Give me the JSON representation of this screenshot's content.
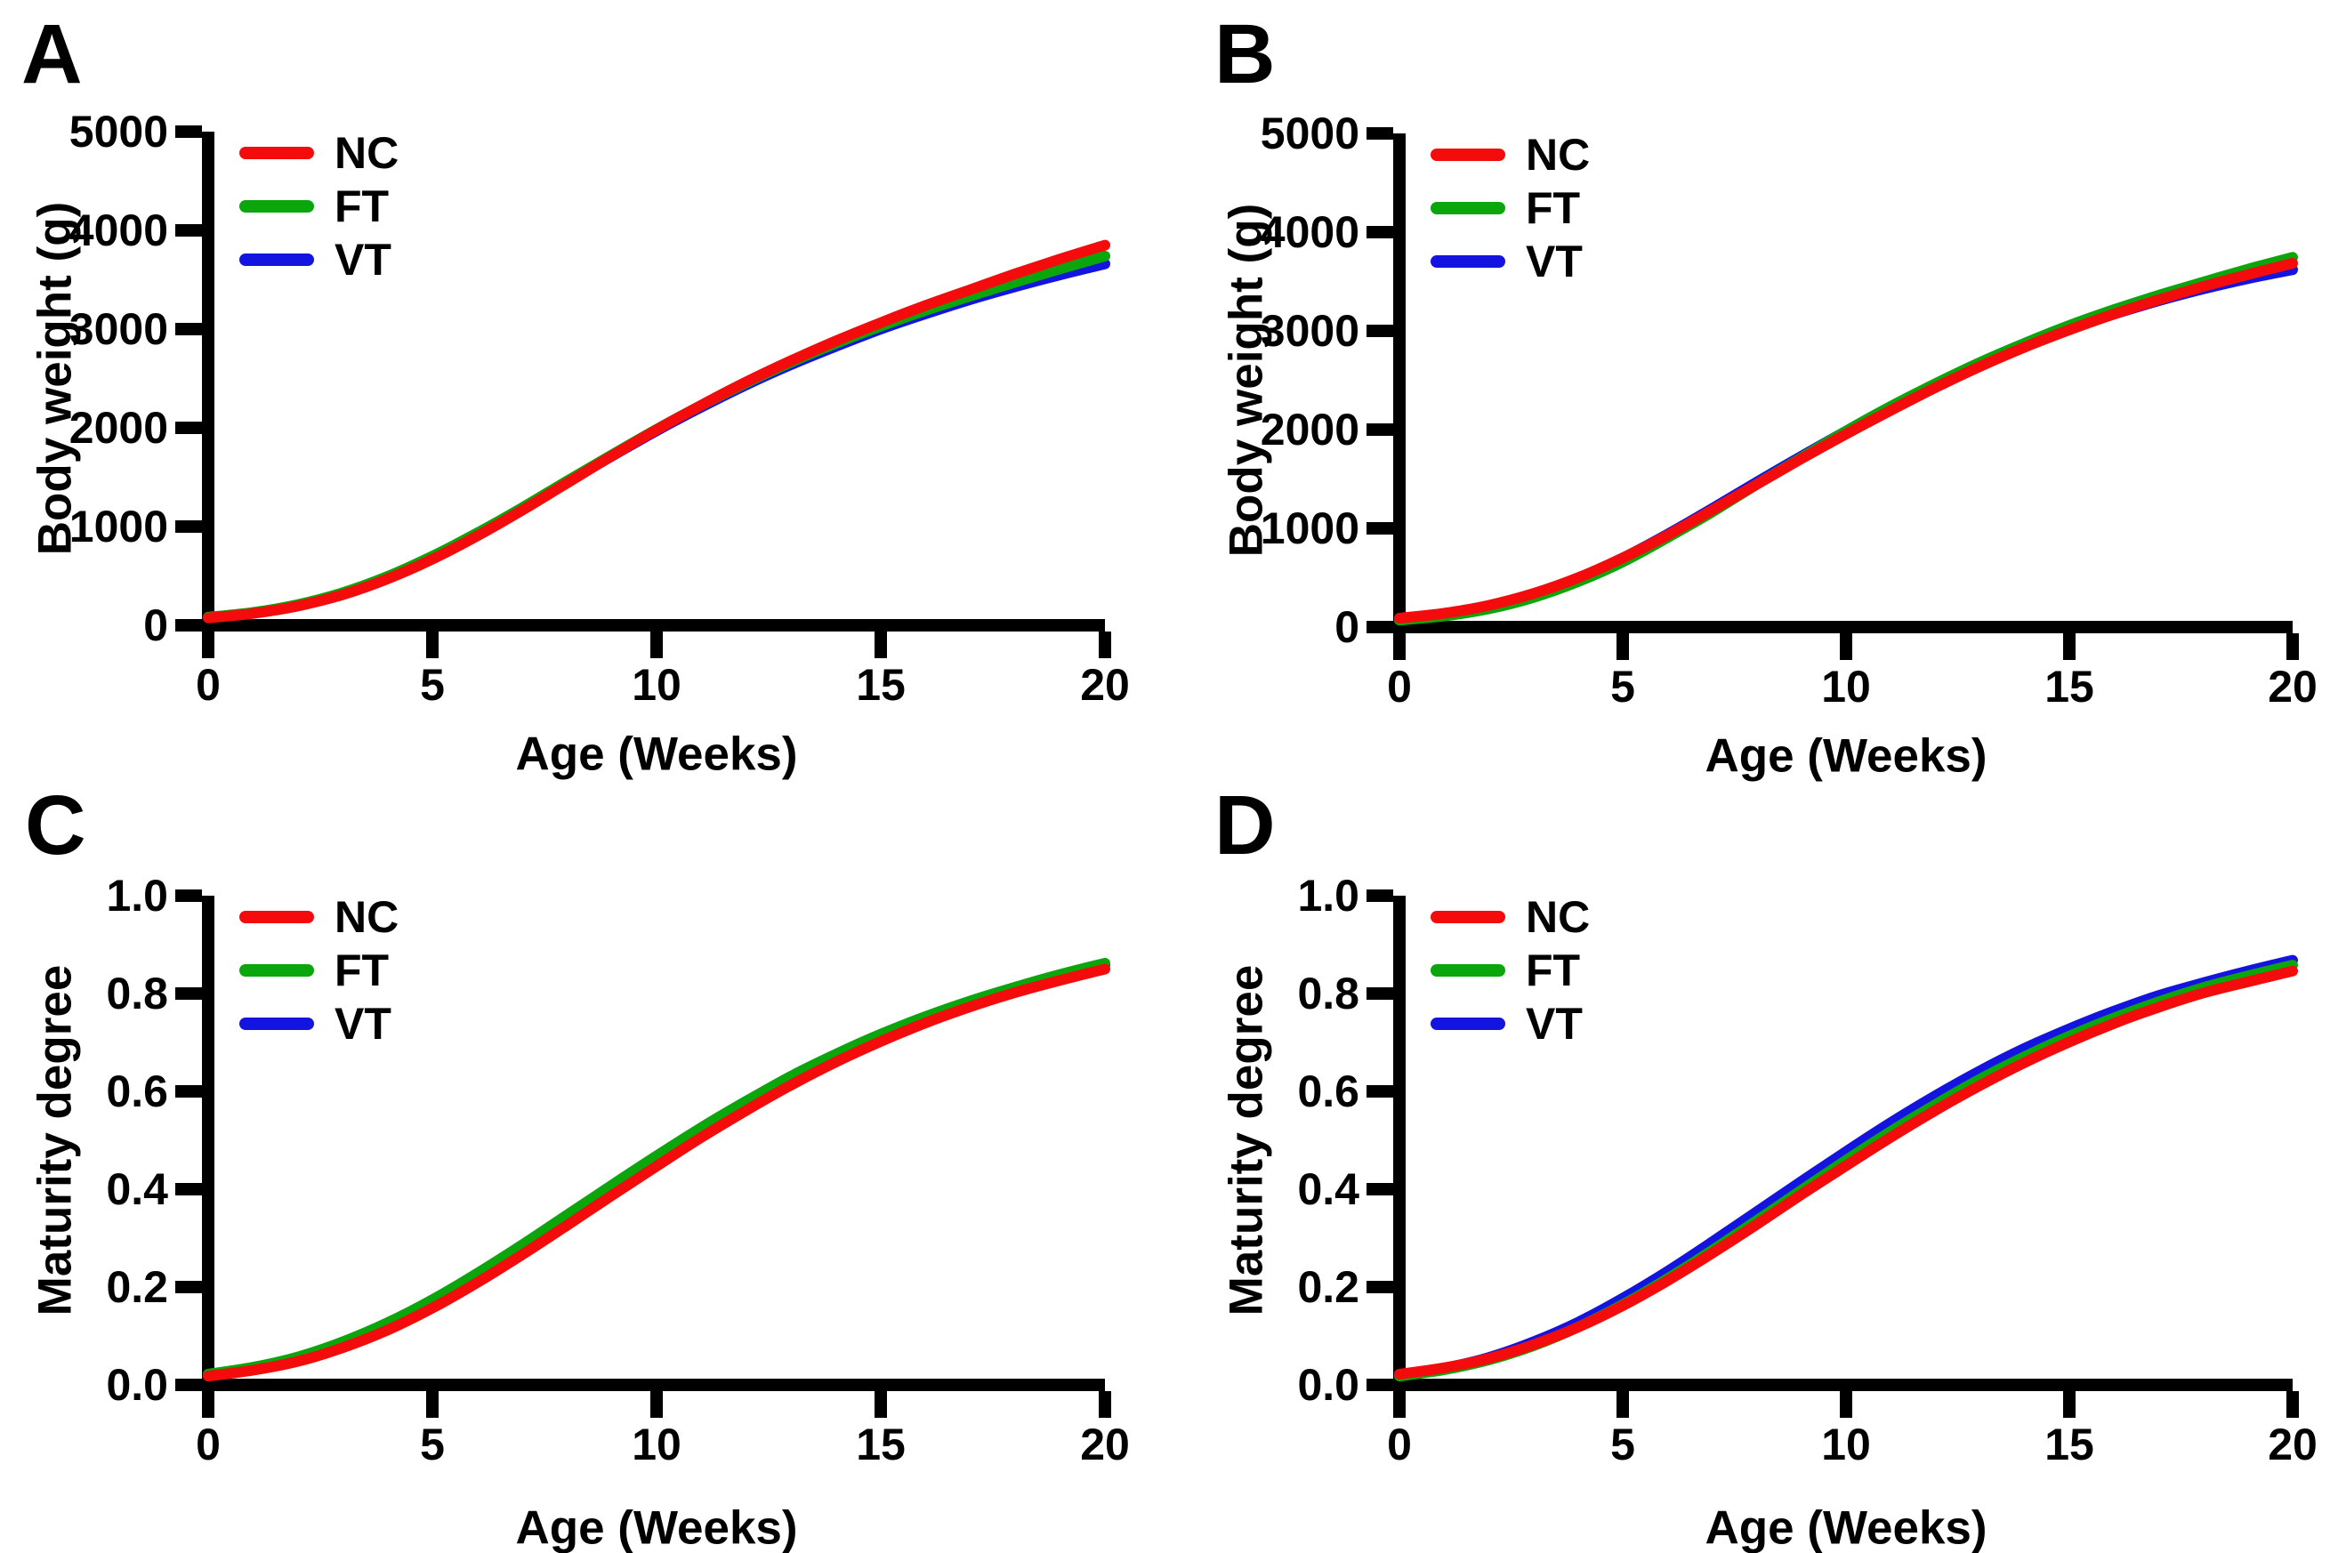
{
  "figure": {
    "background": "#ffffff",
    "axis_color": "#000000",
    "series_colors": {
      "NC": "#f40c0c",
      "FT": "#0ba60b",
      "VT": "#1414e0"
    }
  },
  "chart_data": [
    {
      "panel": "A",
      "type": "line",
      "title": "",
      "xlabel": "Age (Weeks)",
      "ylabel": "Body weight (g)",
      "xlim": [
        0,
        20
      ],
      "ylim": [
        0,
        5000
      ],
      "xticks": [
        0,
        5,
        10,
        15,
        20
      ],
      "xtick_labels": [
        "0",
        "5",
        "10",
        "15",
        "20"
      ],
      "yticks": [
        0,
        1000,
        2000,
        3000,
        4000,
        5000
      ],
      "ytick_labels": [
        "0",
        "1000",
        "2000",
        "3000",
        "4000",
        "5000"
      ],
      "grid": false,
      "legend_position": "top-left",
      "x": [
        0,
        1,
        2,
        3,
        4,
        5,
        6,
        7,
        8,
        9,
        10,
        11,
        12,
        13,
        14,
        15,
        16,
        17,
        18,
        19,
        20
      ],
      "series": [
        {
          "name": "NC",
          "color": "#f40c0c",
          "values": [
            75,
            120,
            195,
            310,
            470,
            670,
            905,
            1165,
            1440,
            1715,
            1980,
            2230,
            2465,
            2680,
            2880,
            3065,
            3240,
            3400,
            3560,
            3710,
            3850
          ]
        },
        {
          "name": "FT",
          "color": "#0ba60b",
          "values": [
            82,
            130,
            210,
            330,
            495,
            700,
            935,
            1190,
            1460,
            1725,
            1985,
            2228,
            2455,
            2665,
            2855,
            3030,
            3190,
            3335,
            3475,
            3610,
            3740
          ]
        },
        {
          "name": "VT",
          "color": "#1414e0",
          "values": [
            78,
            126,
            204,
            322,
            485,
            688,
            922,
            1178,
            1448,
            1713,
            1970,
            2210,
            2435,
            2640,
            2825,
            3000,
            3155,
            3300,
            3430,
            3550,
            3660
          ]
        }
      ]
    },
    {
      "panel": "B",
      "type": "line",
      "title": "",
      "xlabel": "Age (Weeks)",
      "ylabel": "Body weight (g)",
      "xlim": [
        0,
        20
      ],
      "ylim": [
        0,
        5000
      ],
      "xticks": [
        0,
        5,
        10,
        15,
        20
      ],
      "xtick_labels": [
        "0",
        "5",
        "10",
        "15",
        "20"
      ],
      "yticks": [
        0,
        1000,
        2000,
        3000,
        4000,
        5000
      ],
      "ytick_labels": [
        "0",
        "1000",
        "2000",
        "3000",
        "4000",
        "5000"
      ],
      "grid": false,
      "legend_position": "top-left",
      "x": [
        0,
        1,
        2,
        3,
        4,
        5,
        6,
        7,
        8,
        9,
        10,
        11,
        12,
        13,
        14,
        15,
        16,
        17,
        18,
        19,
        20
      ],
      "series": [
        {
          "name": "NC",
          "color": "#f40c0c",
          "values": [
            90,
            140,
            220,
            340,
            500,
            700,
            930,
            1185,
            1445,
            1705,
            1955,
            2195,
            2425,
            2640,
            2835,
            3010,
            3170,
            3315,
            3450,
            3570,
            3685
          ]
        },
        {
          "name": "FT",
          "color": "#0ba60b",
          "values": [
            70,
            112,
            185,
            300,
            460,
            660,
            905,
            1165,
            1445,
            1715,
            1985,
            2235,
            2465,
            2680,
            2875,
            3055,
            3215,
            3360,
            3495,
            3625,
            3745
          ]
        },
        {
          "name": "VT",
          "color": "#1414e0",
          "values": [
            80,
            128,
            208,
            330,
            495,
            700,
            940,
            1200,
            1468,
            1730,
            1985,
            2230,
            2455,
            2665,
            2850,
            3020,
            3170,
            3305,
            3425,
            3530,
            3620
          ]
        }
      ]
    },
    {
      "panel": "C",
      "type": "line",
      "title": "",
      "xlabel": "Age (Weeks)",
      "ylabel": "Maturity degree",
      "xlim": [
        0,
        20
      ],
      "ylim": [
        0,
        1
      ],
      "xticks": [
        0,
        5,
        10,
        15,
        20
      ],
      "xtick_labels": [
        "0",
        "5",
        "10",
        "15",
        "20"
      ],
      "yticks": [
        0,
        0.2,
        0.4,
        0.6,
        0.8,
        1.0
      ],
      "ytick_labels": [
        "0.0",
        "0.2",
        "0.4",
        "0.6",
        "0.8",
        "1.0"
      ],
      "grid": false,
      "legend_position": "top-left",
      "x": [
        0,
        1,
        2,
        3,
        4,
        5,
        6,
        7,
        8,
        9,
        10,
        11,
        12,
        13,
        14,
        15,
        16,
        17,
        18,
        19,
        20
      ],
      "series": [
        {
          "name": "NC",
          "color": "#f40c0c",
          "values": [
            0.018,
            0.03,
            0.048,
            0.076,
            0.112,
            0.157,
            0.209,
            0.266,
            0.326,
            0.387,
            0.447,
            0.506,
            0.561,
            0.613,
            0.66,
            0.702,
            0.74,
            0.773,
            0.802,
            0.827,
            0.85
          ]
        },
        {
          "name": "FT",
          "color": "#0ba60b",
          "values": [
            0.022,
            0.036,
            0.057,
            0.088,
            0.127,
            0.174,
            0.228,
            0.286,
            0.347,
            0.408,
            0.468,
            0.526,
            0.58,
            0.631,
            0.676,
            0.717,
            0.753,
            0.785,
            0.813,
            0.839,
            0.862
          ]
        },
        {
          "name": "VT",
          "color": "#1414e0",
          "values": [
            0.02,
            0.034,
            0.054,
            0.084,
            0.122,
            0.168,
            0.221,
            0.279,
            0.339,
            0.4,
            0.46,
            0.518,
            0.573,
            0.624,
            0.67,
            0.711,
            0.748,
            0.78,
            0.809,
            0.835,
            0.858
          ]
        }
      ]
    },
    {
      "panel": "D",
      "type": "line",
      "title": "",
      "xlabel": "Age (Weeks)",
      "ylabel": "Maturity degree",
      "xlim": [
        0,
        20
      ],
      "ylim": [
        0,
        1
      ],
      "xticks": [
        0,
        5,
        10,
        15,
        20
      ],
      "xtick_labels": [
        "0",
        "5",
        "10",
        "15",
        "20"
      ],
      "yticks": [
        0,
        0.2,
        0.4,
        0.6,
        0.8,
        1.0
      ],
      "ytick_labels": [
        "0.0",
        "0.2",
        "0.4",
        "0.6",
        "0.8",
        "1.0"
      ],
      "grid": false,
      "legend_position": "top-left",
      "x": [
        0,
        1,
        2,
        3,
        4,
        5,
        6,
        7,
        8,
        9,
        10,
        11,
        12,
        13,
        14,
        15,
        16,
        17,
        18,
        19,
        20
      ],
      "series": [
        {
          "name": "NC",
          "color": "#f40c0c",
          "values": [
            0.022,
            0.035,
            0.054,
            0.082,
            0.118,
            0.162,
            0.213,
            0.269,
            0.328,
            0.389,
            0.448,
            0.506,
            0.561,
            0.612,
            0.659,
            0.701,
            0.739,
            0.772,
            0.801,
            0.824,
            0.846
          ]
        },
        {
          "name": "FT",
          "color": "#0ba60b",
          "values": [
            0.018,
            0.031,
            0.051,
            0.08,
            0.118,
            0.164,
            0.217,
            0.275,
            0.336,
            0.398,
            0.459,
            0.518,
            0.573,
            0.625,
            0.671,
            0.713,
            0.75,
            0.783,
            0.812,
            0.836,
            0.858
          ]
        },
        {
          "name": "VT",
          "color": "#1414e0",
          "values": [
            0.02,
            0.034,
            0.056,
            0.088,
            0.128,
            0.177,
            0.232,
            0.292,
            0.354,
            0.416,
            0.477,
            0.536,
            0.591,
            0.642,
            0.688,
            0.728,
            0.764,
            0.796,
            0.822,
            0.846,
            0.868
          ]
        }
      ]
    }
  ]
}
